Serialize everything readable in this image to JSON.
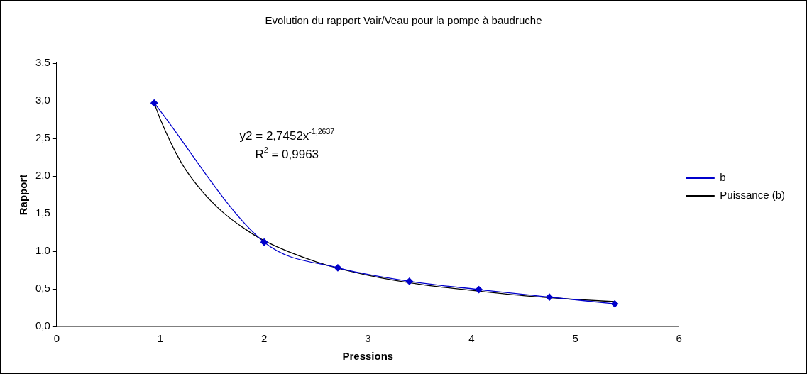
{
  "chart_data": {
    "type": "line",
    "title": "Evolution du rapport Vair/Veau pour la pompe à baudruche",
    "xlabel": "Pressions",
    "ylabel": "Rapport",
    "series": [
      {
        "name": "b",
        "color": "#0000cc",
        "x": [
          0.94,
          2.0,
          2.71,
          3.4,
          4.07,
          4.75,
          5.38
        ],
        "values": [
          2.97,
          1.12,
          0.78,
          0.6,
          0.49,
          0.39,
          0.3
        ]
      },
      {
        "name": "Puissance (b)",
        "color": "#000000",
        "marker": "none",
        "x": [
          0.94,
          1.0,
          1.2,
          1.4,
          1.6,
          1.8,
          2.0,
          2.5,
          3.0,
          3.5,
          4.0,
          4.5,
          5.0,
          5.38
        ],
        "values": [
          2.97,
          2.75,
          2.18,
          1.8,
          1.52,
          1.31,
          1.14,
          0.86,
          0.68,
          0.56,
          0.48,
          0.41,
          0.36,
          0.33
        ]
      }
    ],
    "xlim": [
      0,
      6
    ],
    "xticks": [
      0,
      1,
      2,
      3,
      4,
      5,
      6
    ],
    "ylim": [
      0,
      3.5
    ],
    "yticks": [
      {
        "value": 0,
        "label": "0,0"
      },
      {
        "value": 0.5,
        "label": "0,5"
      },
      {
        "value": 1,
        "label": "1,0"
      },
      {
        "value": 1.5,
        "label": "1,5"
      },
      {
        "value": 2,
        "label": "2,0"
      },
      {
        "value": 2.5,
        "label": "2,5"
      },
      {
        "value": 3,
        "label": "3,0"
      },
      {
        "value": 3.5,
        "label": "3,5"
      }
    ],
    "annotations": [
      "y2 = 2,7452x$^{-1,2637}$",
      "R$^{2}$ = 0,9963"
    ],
    "grid": false,
    "legend": "right",
    "marker": "diamond",
    "line_style": "solid"
  }
}
